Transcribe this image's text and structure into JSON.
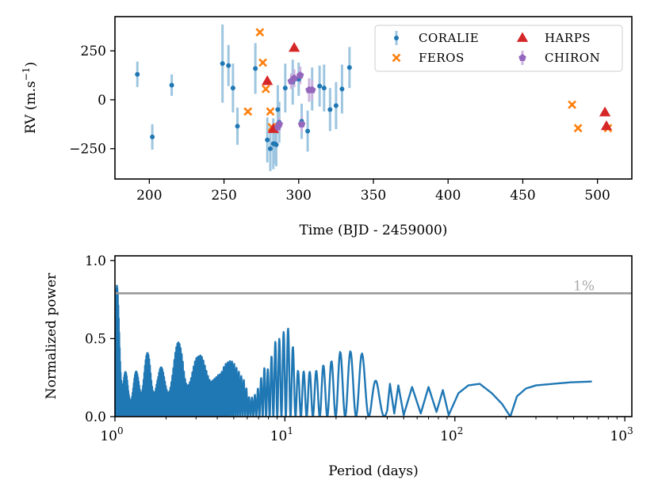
{
  "colors": {
    "coralie": "#1f77b4",
    "coralie_err": "#9ec6e0",
    "feros": "#ff7f0e",
    "harps": "#d62728",
    "chiron": "#9467bd",
    "chiron_err": "#cbb3de",
    "periodogram": "#1f77b4",
    "threshold": "#999999"
  },
  "chart_data": [
    {
      "type": "scatter",
      "xlabel": "Time (BJD - 2459000)",
      "ylabel_main": "RV (m.s",
      "ylabel_sup": "−1",
      "ylabel_close": ")",
      "xlim": [
        177,
        523
      ],
      "ylim": [
        -405,
        425
      ],
      "xticks": [
        200,
        250,
        300,
        350,
        400,
        450,
        500
      ],
      "yticks": [
        -250,
        0,
        250
      ],
      "ytick_labels": [
        "−250",
        "0",
        "250"
      ],
      "legend_position": "top-right",
      "series": [
        {
          "name": "CORALIE",
          "marker": "circle",
          "points": [
            [
              192,
              130,
              65
            ],
            [
              202,
              -190,
              65
            ],
            [
              215,
              75,
              55
            ],
            [
              249,
              185,
              200
            ],
            [
              253,
              175,
              105
            ],
            [
              256,
              60,
              125
            ],
            [
              259,
              -135,
              95
            ],
            [
              271,
              160,
              130
            ],
            [
              279,
              -205,
              115
            ],
            [
              281,
              -250,
              115
            ],
            [
              283,
              -225,
              130
            ],
            [
              284,
              -225,
              105
            ],
            [
              285,
              -230,
              110
            ],
            [
              286,
              -50,
              125
            ],
            [
              287,
              -115,
              105
            ],
            [
              291,
              60,
              125
            ],
            [
              296,
              90,
              115
            ],
            [
              300,
              105,
              85
            ],
            [
              302,
              -110,
              90
            ],
            [
              306,
              -160,
              105
            ],
            [
              309,
              55,
              110
            ],
            [
              314,
              70,
              105
            ],
            [
              317,
              60,
              120
            ],
            [
              321,
              -50,
              110
            ],
            [
              325,
              -30,
              120
            ],
            [
              329,
              55,
              125
            ],
            [
              334,
              165,
              105
            ]
          ]
        },
        {
          "name": "FEROS",
          "marker": "x",
          "points": [
            [
              266,
              -60,
              10
            ],
            [
              274,
              345,
              10
            ],
            [
              276,
              190,
              10
            ],
            [
              278,
              55,
              10
            ],
            [
              281,
              -60,
              10
            ],
            [
              282,
              -140,
              10
            ],
            [
              483,
              -25,
              10
            ],
            [
              487,
              -145,
              10
            ],
            [
              507,
              -145,
              10
            ]
          ]
        },
        {
          "name": "HARPS",
          "marker": "triangle",
          "points": [
            [
              279,
              95,
              8
            ],
            [
              283,
              -150,
              8
            ],
            [
              297,
              265,
              8
            ],
            [
              505,
              -65,
              8
            ],
            [
              506,
              -135,
              8
            ]
          ]
        },
        {
          "name": "CHIRON",
          "marker": "pentagon",
          "points": [
            [
              286,
              -140,
              30
            ],
            [
              287,
              -125,
              35
            ],
            [
              295,
              95,
              40
            ],
            [
              297,
              110,
              45
            ],
            [
              301,
              125,
              45
            ],
            [
              302,
              -125,
              40
            ],
            [
              307,
              50,
              60
            ],
            [
              309,
              50,
              50
            ]
          ]
        }
      ]
    },
    {
      "type": "line",
      "xlabel": "Period (days)",
      "ylabel": "Normalized power",
      "xscale": "log",
      "xlim": [
        1,
        1100
      ],
      "ylim": [
        0,
        1.03
      ],
      "xticks": [
        1,
        10,
        100,
        1000
      ],
      "xtick_base": [
        "10",
        "10",
        "10",
        "10"
      ],
      "xtick_exp": [
        "0",
        "1",
        "2",
        "3"
      ],
      "yticks": [
        0,
        0.5,
        1.0
      ],
      "ytick_labels": [
        "0.0",
        "0.5",
        "1.0"
      ],
      "threshold": {
        "value": 0.79,
        "label": "1%"
      },
      "envelope": [
        [
          1.0,
          0.2
        ],
        [
          1.02,
          0.89
        ],
        [
          1.06,
          0.7
        ],
        [
          1.12,
          0.35
        ],
        [
          1.2,
          0.22
        ],
        [
          1.35,
          0.3
        ],
        [
          1.5,
          0.4
        ],
        [
          1.6,
          0.42
        ],
        [
          1.8,
          0.3
        ],
        [
          2.0,
          0.35
        ],
        [
          2.2,
          0.4
        ],
        [
          2.5,
          0.56
        ],
        [
          2.8,
          0.42
        ],
        [
          3.1,
          0.38
        ],
        [
          3.5,
          0.5
        ],
        [
          3.8,
          0.56
        ],
        [
          4.2,
          0.35
        ],
        [
          4.6,
          0.35
        ],
        [
          5.2,
          0.4
        ],
        [
          5.8,
          0.48
        ],
        [
          6.2,
          0.28
        ],
        [
          6.8,
          0.3
        ],
        [
          7.5,
          0.43
        ],
        [
          8.0,
          0.35
        ],
        [
          8.5,
          0.45
        ],
        [
          9.0,
          0.52
        ],
        [
          9.5,
          0.48
        ],
        [
          10.2,
          0.63
        ],
        [
          11.0,
          0.55
        ],
        [
          12.0,
          0.38
        ],
        [
          13.0,
          0.45
        ],
        [
          14.5,
          0.55
        ],
        [
          15.5,
          0.63
        ],
        [
          16.5,
          0.76
        ],
        [
          18.0,
          0.78
        ],
        [
          19.0,
          0.88
        ],
        [
          20.5,
          0.98
        ],
        [
          22.0,
          0.92
        ],
        [
          24.0,
          0.86
        ],
        [
          26.0,
          0.82
        ],
        [
          28.0,
          0.74
        ],
        [
          30.0,
          0.6
        ],
        [
          33.0,
          0.4
        ],
        [
          36.0,
          0.28
        ],
        [
          40.0,
          0.22
        ]
      ],
      "smooth": [
        [
          40,
          0.04
        ],
        [
          41.5,
          0.21
        ],
        [
          44,
          0.02
        ],
        [
          46.5,
          0.2
        ],
        [
          50,
          0.01
        ],
        [
          56,
          0.19
        ],
        [
          63,
          0.02
        ],
        [
          70,
          0.19
        ],
        [
          78,
          0.03
        ],
        [
          85,
          0.17
        ],
        [
          92,
          0.01
        ],
        [
          105,
          0.15
        ],
        [
          120,
          0.2
        ],
        [
          140,
          0.21
        ],
        [
          165,
          0.15
        ],
        [
          190,
          0.08
        ],
        [
          212,
          0.0
        ],
        [
          232,
          0.13
        ],
        [
          262,
          0.18
        ],
        [
          300,
          0.2
        ],
        [
          380,
          0.21
        ],
        [
          480,
          0.22
        ],
        [
          640,
          0.225
        ]
      ]
    }
  ]
}
